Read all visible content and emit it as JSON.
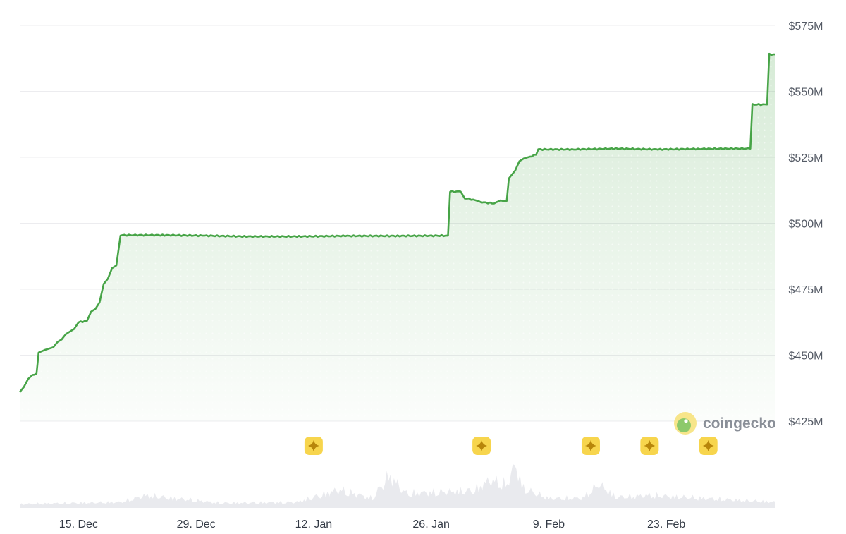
{
  "chart_data": {
    "type": "area",
    "x_unit": "date",
    "title": "",
    "xlabel": "",
    "ylabel": "",
    "ylim": [
      425,
      575
    ],
    "y_ticks": [
      {
        "value": 425,
        "label": "$425M"
      },
      {
        "value": 450,
        "label": "$450M"
      },
      {
        "value": 475,
        "label": "$475M"
      },
      {
        "value": 500,
        "label": "$500M"
      },
      {
        "value": 525,
        "label": "$525M"
      },
      {
        "value": 550,
        "label": "$550M"
      },
      {
        "value": 575,
        "label": "$575M"
      }
    ],
    "x_ticks": [
      {
        "date": "2023-12-15",
        "label": "15. Dec"
      },
      {
        "date": "2023-12-29",
        "label": "29. Dec"
      },
      {
        "date": "2024-01-12",
        "label": "12. Jan"
      },
      {
        "date": "2024-01-26",
        "label": "26. Jan"
      },
      {
        "date": "2024-02-09",
        "label": "9. Feb"
      },
      {
        "date": "2024-02-23",
        "label": "23. Feb"
      }
    ],
    "xlim": [
      "2023-12-08",
      "2024-03-07"
    ],
    "series": [
      {
        "color": "#47a447",
        "points": [
          [
            "2023-12-08",
            436
          ],
          [
            "2023-12-08T12",
            438
          ],
          [
            "2023-12-09",
            441
          ],
          [
            "2023-12-09T12",
            442.5
          ],
          [
            "2023-12-10",
            443
          ],
          [
            "2023-12-10T06",
            451
          ],
          [
            "2023-12-11",
            452
          ],
          [
            "2023-12-12",
            453
          ],
          [
            "2023-12-12T12",
            455
          ],
          [
            "2023-12-13",
            456
          ],
          [
            "2023-12-13T12",
            458
          ],
          [
            "2023-12-14",
            459
          ],
          [
            "2023-12-14T12",
            460
          ],
          [
            "2023-12-15",
            462.5
          ],
          [
            "2023-12-16",
            463
          ],
          [
            "2023-12-16T12",
            466.5
          ],
          [
            "2023-12-17",
            467.5
          ],
          [
            "2023-12-17T12",
            470
          ],
          [
            "2023-12-18",
            477
          ],
          [
            "2023-12-18T12",
            479
          ],
          [
            "2023-12-19",
            483
          ],
          [
            "2023-12-19T12",
            484
          ],
          [
            "2023-12-20",
            495.5
          ],
          [
            "2023-12-25",
            495.5
          ],
          [
            "2023-12-30",
            495.3
          ],
          [
            "2024-01-04",
            495
          ],
          [
            "2024-01-10",
            495
          ],
          [
            "2024-01-16",
            495.2
          ],
          [
            "2024-01-22",
            495.2
          ],
          [
            "2024-01-28",
            495.3
          ],
          [
            "2024-01-28T06",
            512
          ],
          [
            "2024-01-29T12",
            512
          ],
          [
            "2024-01-30",
            509.5
          ],
          [
            "2024-01-31",
            509
          ],
          [
            "2024-02-01",
            508
          ],
          [
            "2024-02-02T12",
            507.5
          ],
          [
            "2024-02-03",
            508.5
          ],
          [
            "2024-02-04",
            508.5
          ],
          [
            "2024-02-04T06",
            517
          ],
          [
            "2024-02-05",
            520
          ],
          [
            "2024-02-05T12",
            523.5
          ],
          [
            "2024-02-06",
            524.5
          ],
          [
            "2024-02-07",
            525.5
          ],
          [
            "2024-02-07T12",
            526
          ],
          [
            "2024-02-07T18",
            528
          ],
          [
            "2024-02-12",
            528
          ],
          [
            "2024-02-17",
            528.3
          ],
          [
            "2024-02-22",
            528
          ],
          [
            "2024-02-27",
            528.2
          ],
          [
            "2024-03-02",
            528.3
          ],
          [
            "2024-03-04",
            528.3
          ],
          [
            "2024-03-04T06",
            545
          ],
          [
            "2024-03-06",
            545
          ],
          [
            "2024-03-06T06",
            564
          ],
          [
            "2024-03-07",
            564
          ]
        ]
      }
    ],
    "volume": {
      "color": "#e9eaee",
      "baseline_points": [
        [
          "2023-12-08",
          8
        ],
        [
          "2023-12-20",
          12
        ],
        [
          "2023-12-23",
          26
        ],
        [
          "2024-01-01",
          10
        ],
        [
          "2024-01-10",
          12
        ],
        [
          "2024-01-15",
          38
        ],
        [
          "2024-01-19",
          20
        ],
        [
          "2024-01-21",
          68
        ],
        [
          "2024-01-23",
          30
        ],
        [
          "2024-01-31",
          36
        ],
        [
          "2024-02-02",
          58
        ],
        [
          "2024-02-04",
          48
        ],
        [
          "2024-02-05",
          90
        ],
        [
          "2024-02-06",
          40
        ],
        [
          "2024-02-09",
          20
        ],
        [
          "2024-02-13",
          20
        ],
        [
          "2024-02-15",
          50
        ],
        [
          "2024-02-17",
          22
        ],
        [
          "2024-02-21",
          26
        ],
        [
          "2024-03-07",
          12
        ]
      ],
      "max": 100
    },
    "event_markers": [
      "2024-01-12",
      "2024-02-01",
      "2024-02-14",
      "2024-02-21",
      "2024-02-28"
    ],
    "watermark": {
      "text": "coingecko"
    },
    "grid": true,
    "legend": "none",
    "line_color": "#47a447",
    "fill_color": "#47a447",
    "marker_color": "#f7d54d"
  }
}
